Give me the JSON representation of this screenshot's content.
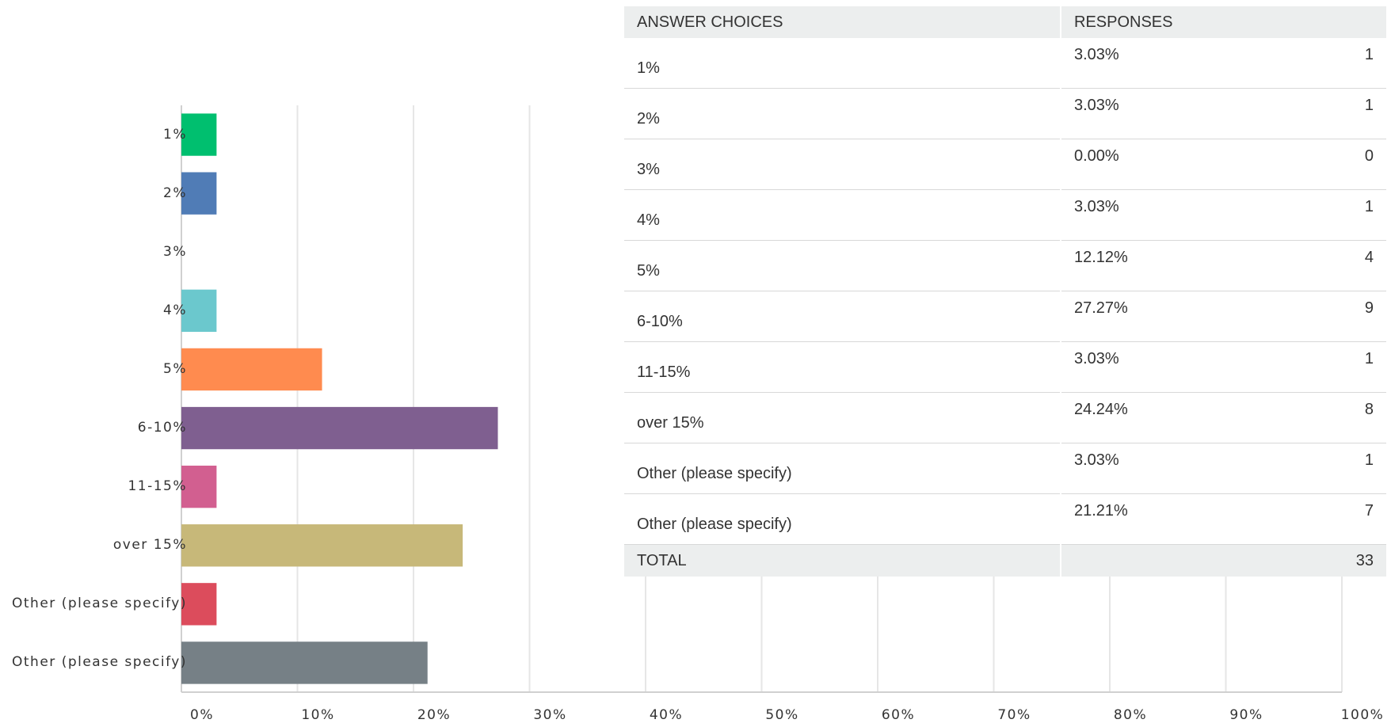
{
  "chart_data": {
    "type": "bar",
    "orientation": "horizontal",
    "categories": [
      "1%",
      "2%",
      "3%",
      "4%",
      "5%",
      "6-10%",
      "11-15%",
      "over 15%",
      "Other (please specify)",
      "Other (please specify)"
    ],
    "values": [
      3.03,
      3.03,
      0,
      3.03,
      12.12,
      27.27,
      3.03,
      24.24,
      3.03,
      21.21
    ],
    "colors": [
      "#00bf6f",
      "#507cb6",
      "#f9be00",
      "#6bc8cd",
      "#ff8b4f",
      "#7f5f90",
      "#d25f90",
      "#c7b879",
      "#dc4c5c",
      "#768086"
    ],
    "xlim": [
      0,
      100
    ],
    "xticks": [
      {
        "value": 0,
        "label": "0%"
      },
      {
        "value": 10,
        "label": "10%"
      },
      {
        "value": 20,
        "label": "20%"
      },
      {
        "value": 30,
        "label": "30%"
      },
      {
        "value": 40,
        "label": "40%"
      },
      {
        "value": 50,
        "label": "50%"
      },
      {
        "value": 60,
        "label": "60%"
      },
      {
        "value": 70,
        "label": "70%"
      },
      {
        "value": 80,
        "label": "80%"
      },
      {
        "value": 90,
        "label": "90%"
      },
      {
        "value": 100,
        "label": "100%"
      }
    ],
    "grid": true
  },
  "table": {
    "header": [
      "ANSWER CHOICES",
      "RESPONSES"
    ],
    "rows": [
      [
        "1%",
        "3.03%",
        1
      ],
      [
        "2%",
        "3.03%",
        1
      ],
      [
        "3%",
        "0.00%",
        0
      ],
      [
        "4%",
        "3.03%",
        1
      ],
      [
        "5%",
        "12.12%",
        4
      ],
      [
        "6-10%",
        "27.27%",
        9
      ],
      [
        "11-15%",
        "3.03%",
        1
      ],
      [
        "over 15%",
        "24.24%",
        8
      ],
      [
        "Other (please specify)",
        "3.03%",
        1
      ],
      [
        "Other (please specify)",
        "21.21%",
        7
      ]
    ],
    "total": [
      "TOTAL",
      33
    ]
  }
}
